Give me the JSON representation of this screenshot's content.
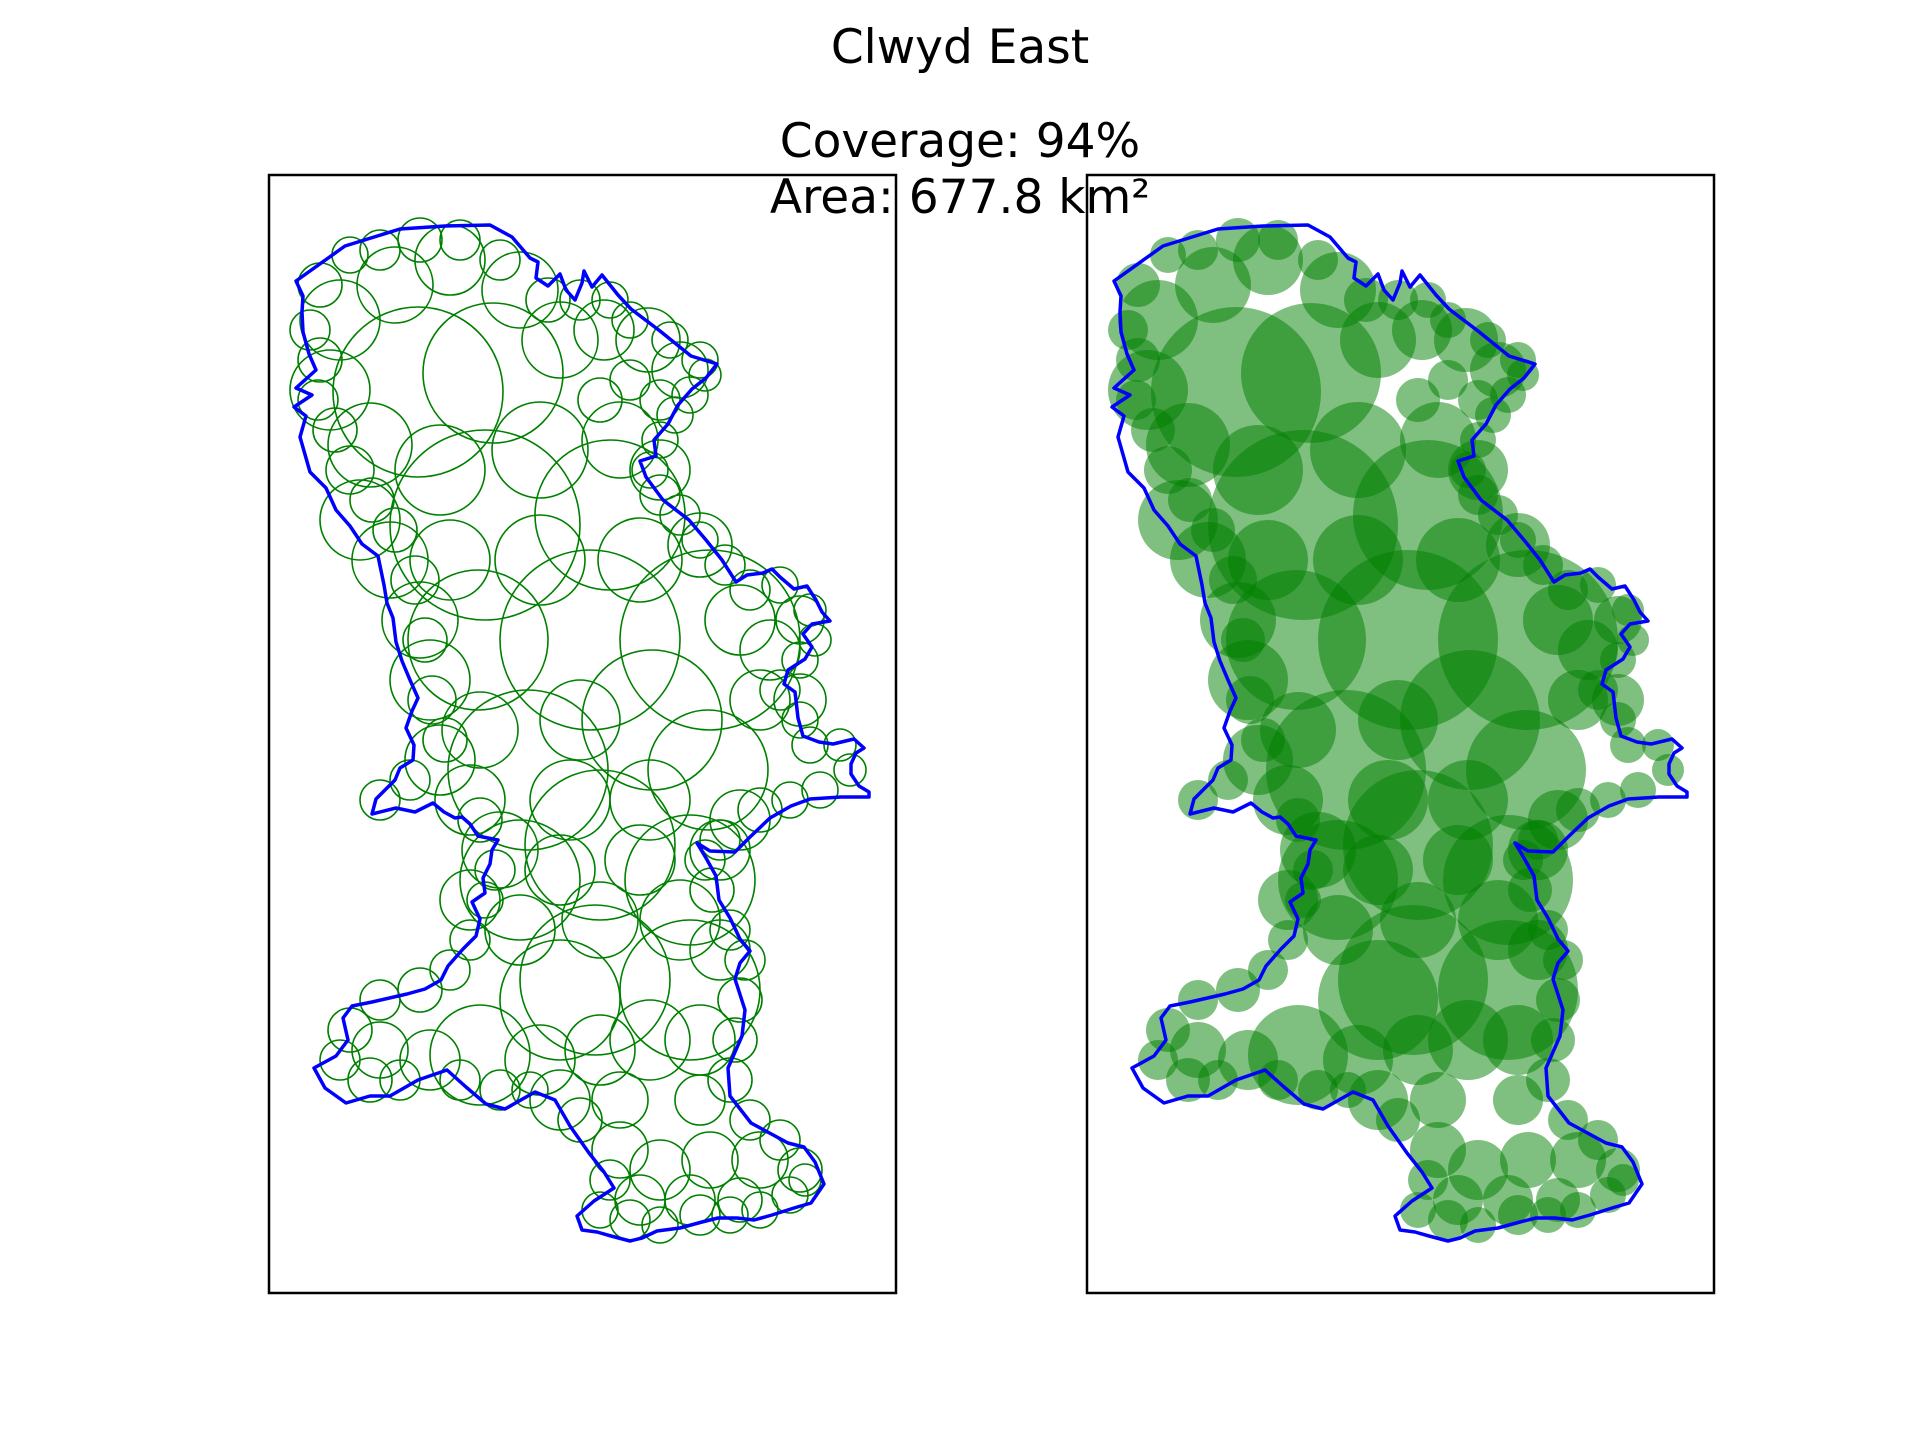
{
  "figure": {
    "title": "Clwyd East",
    "coverage_label": "Coverage: 94%",
    "area_label": "Area: 677.8 km²"
  },
  "colors": {
    "boundary": "#0000ff",
    "circle": "#008000",
    "frame": "#000000",
    "background": "#ffffff"
  },
  "panels": [
    {
      "id": "left",
      "style": "outline-circles"
    },
    {
      "id": "right",
      "style": "filled-circles"
    }
  ],
  "stats": {
    "coverage_percent": 94,
    "area_km2": 677.8
  }
}
